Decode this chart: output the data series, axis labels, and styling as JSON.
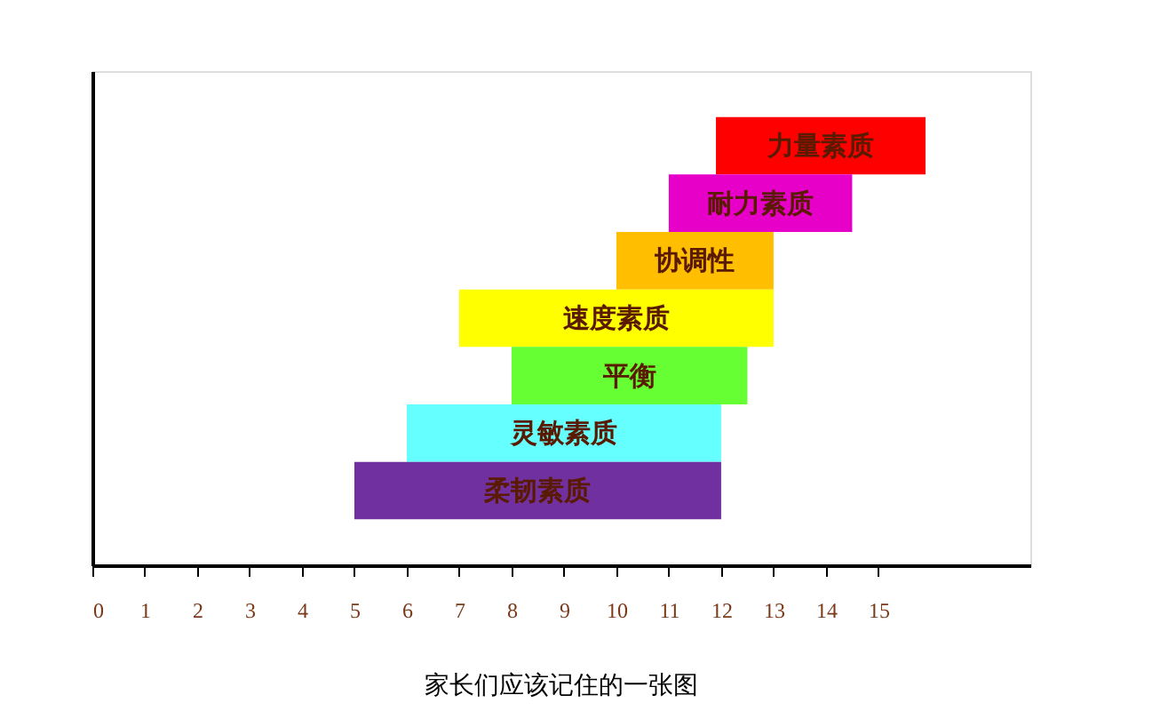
{
  "chart_data": {
    "type": "bar",
    "orientation": "horizontal",
    "title": "家长们应该记住的一张图",
    "categories": [
      "力量素质",
      "耐力素质",
      "协调性",
      "速度素质",
      "平衡",
      "灵敏素质",
      "柔韧素质"
    ],
    "base": [
      11.9,
      11,
      10,
      7,
      8,
      6,
      5
    ],
    "values": [
      4,
      3.5,
      3,
      6,
      4.5,
      6,
      7
    ],
    "colors": [
      "#ff0000",
      "#e600c8",
      "#ffbf00",
      "#ffff00",
      "#66ff33",
      "#66ffff",
      "#7030a0"
    ],
    "xlim": [
      0,
      17.9
    ],
    "xticks": [
      0,
      1,
      2,
      3,
      4,
      5,
      6,
      7,
      8,
      9,
      10,
      11,
      12,
      13,
      14,
      15
    ],
    "tick_labels": "x",
    "grid": false
  }
}
